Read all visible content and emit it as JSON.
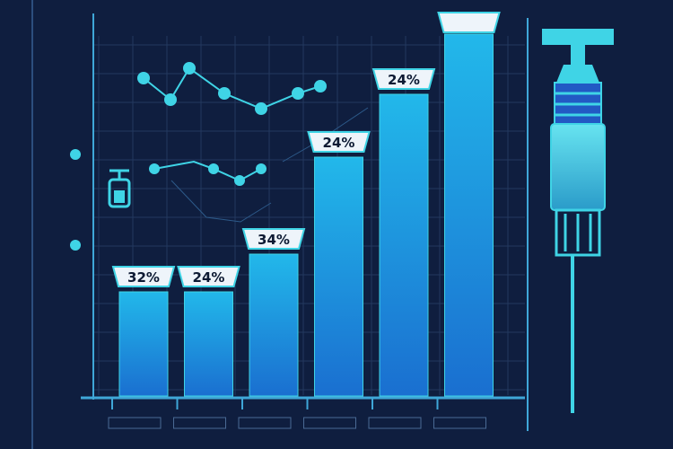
{
  "chart_data": {
    "type": "bar",
    "categories": [
      "",
      "",
      "",
      "",
      "",
      ""
    ],
    "values": [
      32,
      24,
      34,
      24,
      24,
      56
    ],
    "value_labels": [
      "32%",
      "24%",
      "34%",
      "24%",
      "24%",
      ""
    ],
    "top_label": "",
    "title": "",
    "xlabel": "",
    "ylabel": "",
    "ylim": [
      0,
      60
    ],
    "grid": true,
    "legend": "none"
  },
  "colors": {
    "background": "#0f1e3f",
    "bar_top": "#22b8ea",
    "bar_bottom": "#1a6fd0",
    "accent": "#3fd4e6",
    "grid": "#23385f",
    "label_bg": "#eef4fa",
    "label_text": "#0d1a33"
  },
  "decor": {
    "syringe_icon": "syringe-icon",
    "bottle_icon": "small-bottle-icon",
    "network_icon": "network-line-icon"
  }
}
